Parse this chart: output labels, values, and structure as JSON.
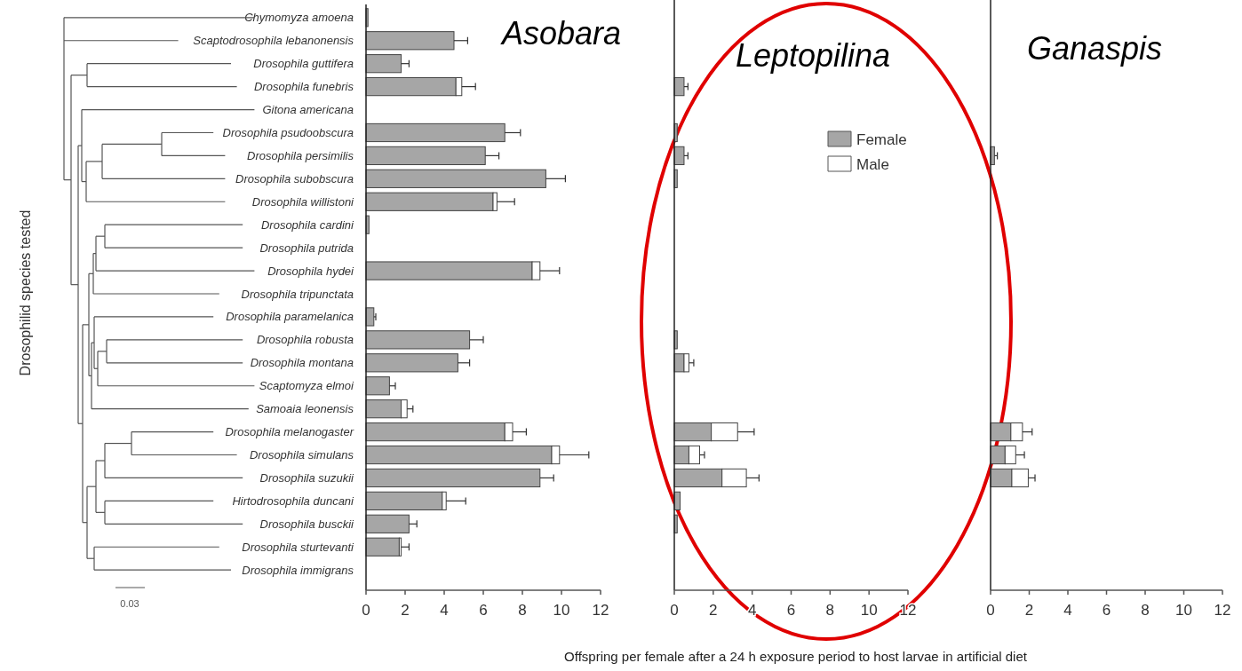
{
  "chart_data": [
    {
      "type": "bar",
      "orientation": "horizontal",
      "stacked": true,
      "title": "Asobara",
      "ylabel": "Drosophilid species tested",
      "categories": [
        "Chymomyza amoena",
        "Scaptodrosophila lebanonensis",
        "Drosophila guttifera",
        "Drosophila funebris",
        "Gitona americana",
        "Drosophila psudoobscura",
        "Drosophila persimilis",
        "Drosophila subobscura",
        "Drosophila willistoni",
        "Drosophila cardini",
        "Drosophila putrida",
        "Drosophila hydei",
        "Drosophila tripunctata",
        "Drosophila paramelanica",
        "Drosophila robusta",
        "Drosophila montana",
        "Scaptomyza elmoi",
        "Samoaia leonensis",
        "Drosophila melanogaster",
        "Drosophila simulans",
        "Drosophila suzukii",
        "Hirtodrosophila duncani",
        "Drosophila busckii",
        "Drosophila sturtevanti",
        "Drosophila immigrans"
      ],
      "series": [
        {
          "color": "#a6a6a6",
          "values": [
            0.1,
            4.5,
            1.8,
            4.6,
            0,
            7.1,
            6.1,
            9.2,
            6.5,
            0.15,
            0,
            8.5,
            0,
            0.4,
            5.3,
            4.7,
            1.2,
            1.8,
            7.1,
            9.5,
            8.9,
            3.9,
            2.2,
            1.7,
            0
          ]
        },
        {
          "color": "#ffffff",
          "values": [
            0,
            0,
            0,
            0.3,
            0,
            0,
            0,
            0,
            0.2,
            0,
            0,
            0.4,
            0,
            0,
            0,
            0,
            0,
            0.3,
            0.4,
            0.4,
            0,
            0.2,
            0,
            0.1,
            0
          ],
          "errors": [
            null,
            0.7,
            0.4,
            0.7,
            null,
            0.8,
            0.7,
            1.0,
            0.9,
            null,
            null,
            1.0,
            null,
            0.1,
            0.7,
            0.6,
            0.3,
            0.3,
            0.7,
            1.5,
            0.7,
            1.0,
            0.4,
            0.4,
            null
          ]
        }
      ],
      "xlim": [
        0,
        12
      ],
      "xticks": [
        0,
        2,
        4,
        6,
        8,
        10,
        12
      ],
      "grid": false,
      "legend": false,
      "annotations": [
        "0.03"
      ]
    },
    {
      "type": "bar",
      "orientation": "horizontal",
      "stacked": true,
      "title": "Leptopilina",
      "xlabel": "Offspring per female after a 24 h exposure period to host larvae in artificial diet",
      "categories": [
        null,
        null,
        null,
        null,
        null,
        null,
        null,
        null,
        null,
        null,
        null,
        null,
        null,
        null,
        null,
        null,
        null,
        null,
        null,
        null,
        null,
        null,
        null,
        null,
        null
      ],
      "series": [
        {
          "name": "Female",
          "color": "#a6a6a6",
          "values": [
            0,
            0,
            0,
            0.5,
            0,
            0.15,
            0.5,
            0.15,
            0,
            0,
            0,
            0,
            0,
            0,
            0.15,
            0.5,
            0,
            0,
            1.9,
            0.75,
            2.45,
            0.3,
            0.15,
            0,
            0
          ]
        },
        {
          "name": "Male",
          "color": "#ffffff",
          "values": [
            0,
            0,
            0,
            0,
            0,
            0,
            0,
            0,
            0,
            0,
            0,
            0,
            0,
            0,
            0,
            0.25,
            0,
            0,
            1.35,
            0.55,
            1.25,
            0,
            0,
            0,
            0
          ],
          "errors": [
            null,
            null,
            null,
            0.2,
            null,
            null,
            0.2,
            null,
            null,
            null,
            null,
            null,
            null,
            null,
            null,
            0.25,
            null,
            null,
            0.85,
            0.25,
            0.65,
            null,
            null,
            null,
            null
          ]
        }
      ],
      "xlim": [
        0,
        12
      ],
      "xticks": [
        0,
        2,
        4,
        6,
        8,
        10,
        12
      ],
      "grid": false,
      "legend": "top right",
      "tick_labels": "x"
    },
    {
      "type": "bar",
      "orientation": "horizontal",
      "stacked": true,
      "title": "Ganaspis",
      "categories": [
        null,
        null,
        null,
        null,
        null,
        null,
        null,
        null,
        null,
        null,
        null,
        null,
        null,
        null,
        null,
        null,
        null,
        null,
        null,
        null,
        null,
        null,
        null,
        null,
        null
      ],
      "series": [
        {
          "color": "#a6a6a6",
          "values": [
            0,
            0,
            0,
            0,
            0,
            0,
            0.2,
            0,
            0,
            0,
            0,
            0,
            0,
            0,
            0,
            0,
            0,
            0,
            1.05,
            0.75,
            1.1,
            0,
            0,
            0,
            0
          ]
        },
        {
          "color": "#ffffff",
          "values": [
            0,
            0,
            0,
            0,
            0,
            0,
            0,
            0,
            0,
            0,
            0,
            0,
            0,
            0,
            0,
            0,
            0,
            0,
            0.6,
            0.55,
            0.85,
            0,
            0,
            0,
            0
          ],
          "errors": [
            null,
            null,
            null,
            null,
            null,
            null,
            0.15,
            null,
            null,
            null,
            null,
            null,
            null,
            null,
            null,
            null,
            null,
            null,
            0.5,
            0.45,
            0.35,
            null,
            null,
            null,
            null
          ]
        }
      ],
      "xlim": [
        0,
        12
      ],
      "xticks": [
        0,
        2,
        4,
        6,
        8,
        10,
        12
      ],
      "grid": false,
      "legend": false,
      "tick_labels": "x"
    }
  ]
}
